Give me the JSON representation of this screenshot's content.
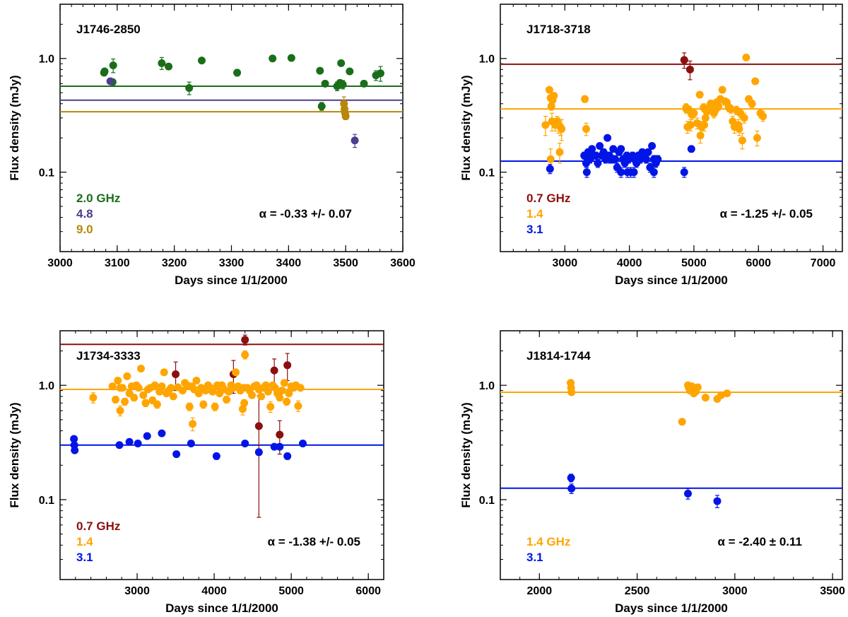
{
  "colors": {
    "green": "#1a6e1a",
    "purple": "#4b3f8c",
    "gold": "#b8860b",
    "darkred": "#8b0f0f",
    "orange": "#ffa500",
    "blue": "#0015e6",
    "axis": "#000000"
  },
  "chart_data": [
    {
      "type": "scatter",
      "title": "J1746-2850",
      "xlabel": "Days since 1/1/2000",
      "ylabel": "Flux density (mJy)",
      "xlim": [
        3000,
        3600
      ],
      "ylim": [
        0.02,
        3.0
      ],
      "yscale": "log",
      "xticks": [
        3000,
        3100,
        3200,
        3300,
        3400,
        3500,
        3600
      ],
      "yticks": [
        0.1,
        1.0
      ],
      "ytick_labels": [
        "0.1",
        "1.0"
      ],
      "annotation": "α = -0.33 +/- 0.07",
      "legend": [
        "2.0 GHz",
        "4.8",
        "9.0"
      ],
      "legend_position": "bottom-left",
      "series": [
        {
          "name": "2.0 GHz",
          "color": "green",
          "mean": 0.57,
          "x": [
            3077,
            3078,
            3093,
            3092,
            3178,
            3190,
            3226,
            3248,
            3310,
            3372,
            3405,
            3455,
            3458,
            3464,
            3485,
            3487,
            3490,
            3492,
            3495,
            3507,
            3532,
            3553,
            3561
          ],
          "y": [
            0.75,
            0.77,
            0.87,
            0.62,
            0.91,
            0.85,
            0.55,
            0.96,
            0.75,
            1.0,
            1.01,
            0.78,
            0.38,
            0.6,
            0.57,
            0.58,
            0.61,
            0.91,
            0.59,
            0.77,
            0.6,
            0.71,
            0.74
          ],
          "err": [
            0.04,
            0.04,
            0.12,
            0.03,
            0.11,
            0.03,
            0.07,
            0.03,
            0.05,
            0.03,
            0.03,
            0.03,
            0.03,
            0.03,
            0.05,
            0.03,
            0.03,
            0.03,
            0.05,
            0.03,
            0.03,
            0.07,
            0.11
          ]
        },
        {
          "name": "4.8",
          "color": "purple",
          "mean": 0.43,
          "x": [
            3088,
            3516
          ],
          "y": [
            0.63,
            0.19
          ],
          "err": [
            0.03,
            0.025
          ]
        },
        {
          "name": "9.0",
          "color": "gold",
          "mean": 0.34,
          "x": [
            3497,
            3498,
            3499,
            3500
          ],
          "y": [
            0.4,
            0.36,
            0.33,
            0.31
          ],
          "err": [
            0.06,
            0.03,
            0.03,
            0.02
          ]
        }
      ]
    },
    {
      "type": "scatter",
      "title": "J1718-3718",
      "xlabel": "Days since 1/1/2000",
      "ylabel": "Flux density (mJy)",
      "xlim": [
        2000,
        7300
      ],
      "ylim": [
        0.02,
        3.0
      ],
      "yscale": "log",
      "xticks": [
        3000,
        4000,
        5000,
        6000,
        7000
      ],
      "yticks": [
        0.1,
        1.0
      ],
      "ytick_labels": [
        "0.1",
        "1.0"
      ],
      "annotation": "α = -1.25 +/- 0.05",
      "legend": [
        "0.7 GHz",
        "1.4",
        "3.1"
      ],
      "legend_position": "bottom-left",
      "series": [
        {
          "name": "0.7 GHz",
          "color": "darkred",
          "mean": 0.89,
          "x": [
            4850,
            4940
          ],
          "y": [
            0.97,
            0.8
          ],
          "err": [
            0.15,
            0.15
          ]
        },
        {
          "name": "1.4",
          "color": "orange",
          "mean": 0.36,
          "x": [
            2700,
            2760,
            2780,
            2790,
            2810,
            2830,
            2850,
            2880,
            2900,
            2930,
            2950,
            2780,
            2800,
            2920,
            3310,
            3330,
            4880,
            4900,
            4930,
            4950,
            4970,
            5000,
            5050,
            5090,
            5120,
            5150,
            5180,
            5200,
            5230,
            5260,
            5290,
            5310,
            5330,
            5350,
            5380,
            5410,
            5440,
            5480,
            5510,
            5540,
            5570,
            5600,
            5630,
            5660,
            5690,
            5720,
            5750,
            5780,
            5810,
            5850,
            5900,
            5950,
            5980,
            6030,
            6070,
            4880,
            5100,
            5160,
            5700
          ],
          "y": [
            0.26,
            0.53,
            0.45,
            0.38,
            0.43,
            0.47,
            0.26,
            0.28,
            0.26,
            0.25,
            0.24,
            0.13,
            0.28,
            0.15,
            0.44,
            0.24,
            0.37,
            0.25,
            0.35,
            0.26,
            0.32,
            0.33,
            0.27,
            0.48,
            0.25,
            0.37,
            0.3,
            0.34,
            0.37,
            0.4,
            0.38,
            0.33,
            0.35,
            0.41,
            0.38,
            0.44,
            0.53,
            0.42,
            0.41,
            0.37,
            0.36,
            0.28,
            0.25,
            0.35,
            0.26,
            0.33,
            0.19,
            0.3,
            1.02,
            0.44,
            0.4,
            0.63,
            0.2,
            0.33,
            0.31,
            0.36,
            0.21,
            0.26,
            0.24
          ],
          "err": [
            0.05,
            0.03,
            0.03,
            0.03,
            0.03,
            0.03,
            0.03,
            0.03,
            0.04,
            0.04,
            0.05,
            0.03,
            0.05,
            0.03,
            0.03,
            0.03,
            0.03,
            0.03,
            0.03,
            0.03,
            0.03,
            0.03,
            0.03,
            0.03,
            0.03,
            0.03,
            0.03,
            0.03,
            0.03,
            0.03,
            0.03,
            0.03,
            0.03,
            0.03,
            0.03,
            0.03,
            0.03,
            0.03,
            0.03,
            0.03,
            0.03,
            0.03,
            0.03,
            0.03,
            0.03,
            0.03,
            0.03,
            0.03,
            0.03,
            0.03,
            0.03,
            0.03,
            0.03,
            0.03,
            0.03,
            0.03,
            0.03,
            0.03,
            0.03
          ]
        },
        {
          "name": "3.1",
          "color": "blue",
          "mean": 0.125,
          "x": [
            2770,
            3300,
            3330,
            3360,
            3390,
            3420,
            3450,
            3480,
            3510,
            3540,
            3570,
            3600,
            3630,
            3660,
            3690,
            3720,
            3750,
            3780,
            3810,
            3840,
            3870,
            3900,
            3930,
            3960,
            3990,
            4020,
            4050,
            4080,
            4110,
            4140,
            4170,
            4200,
            4230,
            4260,
            4290,
            4320,
            4350,
            4380,
            4410,
            4440,
            4850,
            4960,
            3340,
            3700,
            3870,
            3970,
            4070,
            4380
          ],
          "y": [
            0.107,
            0.14,
            0.12,
            0.15,
            0.13,
            0.16,
            0.14,
            0.14,
            0.12,
            0.17,
            0.14,
            0.15,
            0.13,
            0.2,
            0.14,
            0.13,
            0.16,
            0.13,
            0.11,
            0.15,
            0.16,
            0.13,
            0.12,
            0.14,
            0.13,
            0.1,
            0.14,
            0.13,
            0.12,
            0.14,
            0.13,
            0.15,
            0.14,
            0.13,
            0.15,
            0.11,
            0.17,
            0.13,
            0.12,
            0.13,
            0.1,
            0.16,
            0.1,
            0.13,
            0.1,
            0.1,
            0.1,
            0.1
          ],
          "err": [
            0.01,
            0.01,
            0.01,
            0.01,
            0.01,
            0.01,
            0.01,
            0.01,
            0.01,
            0.01,
            0.01,
            0.01,
            0.01,
            0.01,
            0.01,
            0.01,
            0.01,
            0.01,
            0.01,
            0.01,
            0.01,
            0.01,
            0.01,
            0.01,
            0.01,
            0.01,
            0.01,
            0.01,
            0.01,
            0.01,
            0.01,
            0.01,
            0.01,
            0.01,
            0.01,
            0.01,
            0.01,
            0.01,
            0.01,
            0.01,
            0.01,
            0.01,
            0.01,
            0.01,
            0.01,
            0.01,
            0.01,
            0.01
          ]
        }
      ]
    },
    {
      "type": "scatter",
      "title": "J1734-3333",
      "xlabel": "Days since 1/1/2000",
      "ylabel": "Flux density (mJy)",
      "xlim": [
        2000,
        6200
      ],
      "ylim": [
        0.02,
        3.0
      ],
      "yscale": "log",
      "xticks": [
        3000,
        4000,
        5000,
        6000
      ],
      "yticks": [
        0.1,
        1.0
      ],
      "ytick_labels": [
        "0.1",
        "1.0"
      ],
      "annotation": "α = -1.38 +/- 0.05",
      "legend": [
        "0.7 GHz",
        "1.4",
        "3.1"
      ],
      "legend_position": "bottom-left",
      "series": [
        {
          "name": "0.7 GHz",
          "color": "darkred",
          "mean": 2.28,
          "x": [
            3500,
            4250,
            4400,
            4580,
            4780,
            4850,
            4950
          ],
          "y": [
            1.25,
            1.25,
            2.5,
            0.44,
            1.35,
            0.37,
            1.5
          ],
          "err": [
            0.35,
            0.4,
            0.25,
            0.37,
            0.35,
            0.12,
            0.4
          ]
        },
        {
          "name": "1.4",
          "color": "orange",
          "mean": 0.92,
          "x": [
            2430,
            2680,
            2720,
            2750,
            2780,
            2810,
            2840,
            2870,
            2900,
            2930,
            2960,
            2990,
            3020,
            3050,
            3080,
            3110,
            3140,
            3170,
            3200,
            3230,
            3260,
            3290,
            3320,
            3350,
            3380,
            3410,
            3440,
            3470,
            3530,
            3590,
            3620,
            3650,
            3680,
            3710,
            3740,
            3770,
            3800,
            3830,
            3860,
            3890,
            3920,
            3950,
            3980,
            4010,
            4040,
            4070,
            4100,
            4130,
            4160,
            4190,
            4220,
            4250,
            4280,
            4310,
            4340,
            4370,
            4400,
            4430,
            4460,
            4490,
            4520,
            4550,
            4580,
            4610,
            4640,
            4670,
            4700,
            4730,
            4760,
            4790,
            4820,
            4850,
            4880,
            4910,
            4940,
            4970,
            5000,
            5030,
            5060,
            5090,
            5120,
            2780,
            3720,
            4380,
            4390
          ],
          "y": [
            0.78,
            0.98,
            0.75,
            1.1,
            0.6,
            0.95,
            0.72,
            1.2,
            0.85,
            0.98,
            0.78,
            1.0,
            0.95,
            1.4,
            0.82,
            0.7,
            0.92,
            0.95,
            0.74,
            1.0,
            0.68,
            0.88,
            0.98,
            1.3,
            0.85,
            0.9,
            0.95,
            0.8,
            0.96,
            0.9,
            1.05,
            1.0,
            0.65,
            0.98,
            0.92,
            1.1,
            0.85,
            0.95,
            0.68,
            0.9,
            1.0,
            0.95,
            0.88,
            0.65,
            1.0,
            0.85,
            1.0,
            0.92,
            0.75,
            0.88,
            1.0,
            0.95,
            1.3,
            0.98,
            0.9,
            0.62,
            1.85,
            0.95,
            0.9,
            0.82,
            0.98,
            1.0,
            0.92,
            0.8,
            0.95,
            1.0,
            0.88,
            0.65,
            1.0,
            0.95,
            0.85,
            0.78,
            0.9,
            1.05,
            0.72,
            0.85,
            0.98,
            0.95,
            1.0,
            0.66,
            0.95,
            0.95,
            0.46,
            0.95,
            0.7
          ],
          "err": [
            0.08,
            0.05,
            0.05,
            0.05,
            0.06,
            0.05,
            0.05,
            0.05,
            0.05,
            0.05,
            0.05,
            0.05,
            0.05,
            0.05,
            0.05,
            0.05,
            0.05,
            0.05,
            0.05,
            0.05,
            0.05,
            0.05,
            0.05,
            0.05,
            0.05,
            0.05,
            0.05,
            0.05,
            0.05,
            0.05,
            0.05,
            0.05,
            0.05,
            0.05,
            0.05,
            0.05,
            0.05,
            0.05,
            0.05,
            0.05,
            0.05,
            0.05,
            0.05,
            0.05,
            0.05,
            0.05,
            0.05,
            0.05,
            0.05,
            0.05,
            0.05,
            0.05,
            0.05,
            0.05,
            0.05,
            0.07,
            0.15,
            0.05,
            0.05,
            0.05,
            0.05,
            0.05,
            0.05,
            0.05,
            0.05,
            0.05,
            0.05,
            0.07,
            0.05,
            0.05,
            0.05,
            0.05,
            0.05,
            0.05,
            0.05,
            0.05,
            0.05,
            0.05,
            0.05,
            0.07,
            0.05,
            0.05,
            0.06,
            0.05,
            0.05
          ]
        },
        {
          "name": "3.1",
          "color": "blue",
          "mean": 0.3,
          "x": [
            2180,
            2185,
            2190,
            2770,
            2900,
            3010,
            3130,
            3320,
            3510,
            3700,
            4030,
            4400,
            4580,
            4780,
            4850,
            4950,
            5150
          ],
          "y": [
            0.34,
            0.3,
            0.27,
            0.3,
            0.32,
            0.31,
            0.36,
            0.38,
            0.25,
            0.31,
            0.24,
            0.31,
            0.26,
            0.29,
            0.29,
            0.24,
            0.31
          ],
          "err": [
            0.015,
            0.015,
            0.015,
            0.015,
            0.015,
            0.015,
            0.015,
            0.015,
            0.015,
            0.015,
            0.015,
            0.015,
            0.015,
            0.015,
            0.015,
            0.015,
            0.015
          ]
        }
      ]
    },
    {
      "type": "scatter",
      "title": "J1814-1744",
      "xlabel": "Days since 1/1/2000",
      "ylabel": "Flux density (mJy)",
      "xlim": [
        1800,
        3550
      ],
      "ylim": [
        0.02,
        3.0
      ],
      "yscale": "log",
      "xticks": [
        2000,
        2500,
        3000,
        3500
      ],
      "yticks": [
        0.1,
        1.0
      ],
      "ytick_labels": [
        "0.1",
        "1.0"
      ],
      "annotation": "α = -2.40 ± 0.11",
      "legend": [
        "1.4 GHz",
        "3.1"
      ],
      "legend_position": "bottom-left",
      "series": [
        {
          "name": "1.4 GHz",
          "color": "orange",
          "mean": 0.87,
          "x": [
            2160,
            2162,
            2164,
            2730,
            2760,
            2765,
            2770,
            2780,
            2790,
            2800,
            2810,
            2850,
            2910,
            2930,
            2960
          ],
          "y": [
            1.05,
            0.95,
            0.87,
            0.48,
            1.0,
            0.95,
            0.9,
            0.98,
            0.85,
            0.88,
            0.96,
            0.78,
            0.76,
            0.82,
            0.85
          ],
          "err": [
            0.04,
            0.03,
            0.03,
            0.03,
            0.03,
            0.03,
            0.03,
            0.03,
            0.03,
            0.03,
            0.03,
            0.03,
            0.03,
            0.03,
            0.03
          ]
        },
        {
          "name": "3.1",
          "color": "blue",
          "mean": 0.126,
          "x": [
            2162,
            2164,
            2760,
            2910
          ],
          "y": [
            0.155,
            0.125,
            0.113,
            0.097
          ],
          "err": [
            0.012,
            0.012,
            0.012,
            0.012
          ]
        }
      ]
    }
  ]
}
